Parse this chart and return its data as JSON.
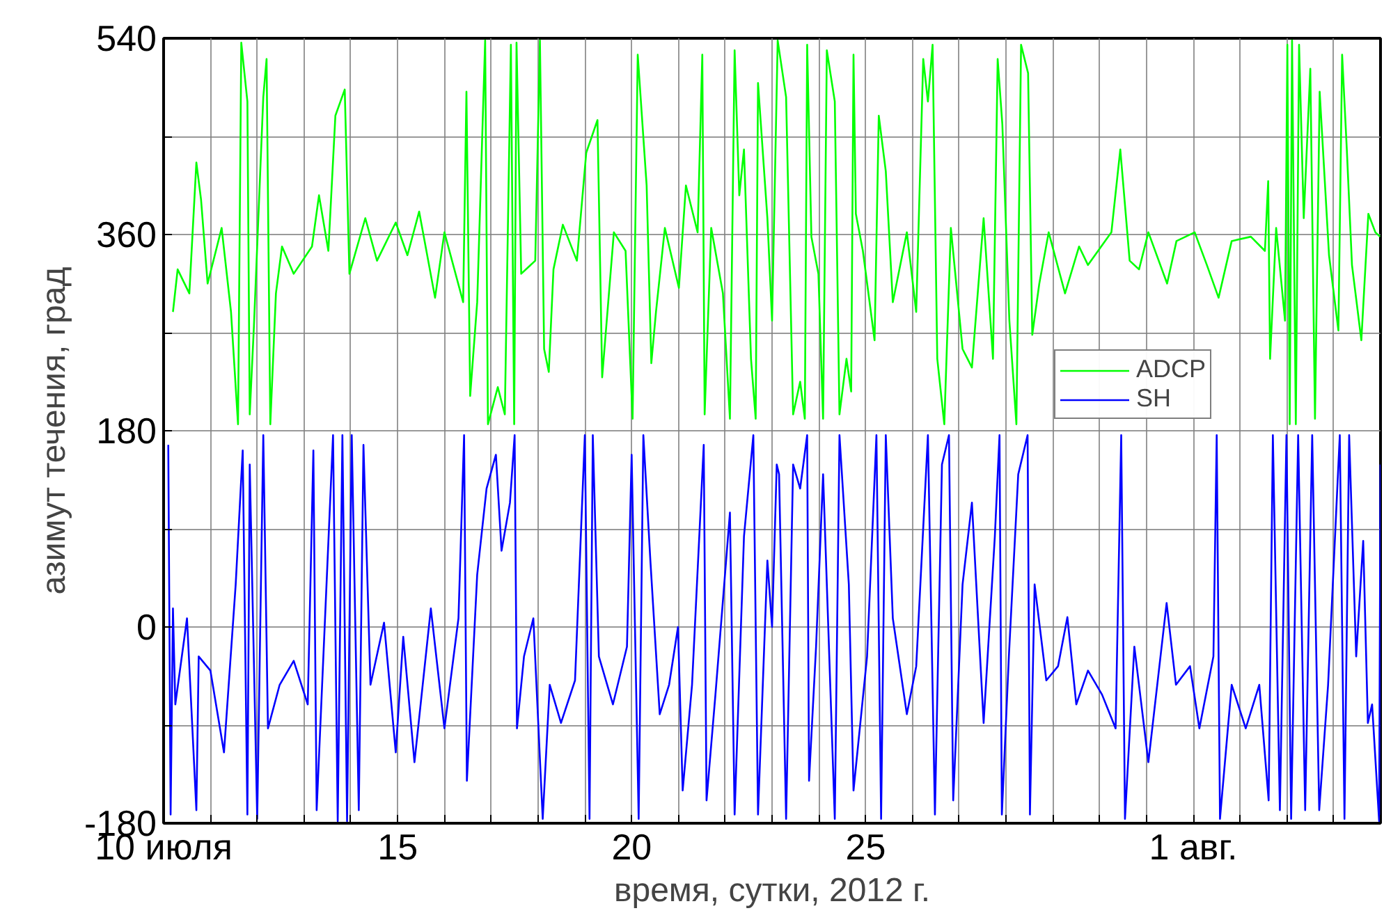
{
  "chart_data": {
    "type": "line",
    "xlabel": "время, сутки, 2012 г.",
    "ylabel": "азимут течения, град",
    "xlim": [
      "2012-07-10",
      "2012-08-05"
    ],
    "ylim": [
      -180,
      540
    ],
    "xticks": [
      {
        "value": "2012-07-10",
        "label": "10 июля"
      },
      {
        "value": "2012-07-11",
        "label": null
      },
      {
        "value": "2012-07-12",
        "label": null
      },
      {
        "value": "2012-07-13",
        "label": null
      },
      {
        "value": "2012-07-14",
        "label": null
      },
      {
        "value": "2012-07-15",
        "label": "15"
      },
      {
        "value": "2012-07-16",
        "label": null
      },
      {
        "value": "2012-07-17",
        "label": null
      },
      {
        "value": "2012-07-18",
        "label": null
      },
      {
        "value": "2012-07-19",
        "label": null
      },
      {
        "value": "2012-07-20",
        "label": "20"
      },
      {
        "value": "2012-07-21",
        "label": null
      },
      {
        "value": "2012-07-22",
        "label": null
      },
      {
        "value": "2012-07-23",
        "label": null
      },
      {
        "value": "2012-07-24",
        "label": null
      },
      {
        "value": "2012-07-25",
        "label": "25"
      },
      {
        "value": "2012-07-26",
        "label": null
      },
      {
        "value": "2012-07-27",
        "label": null
      },
      {
        "value": "2012-07-28",
        "label": null
      },
      {
        "value": "2012-07-29",
        "label": null
      },
      {
        "value": "2012-07-30",
        "label": null
      },
      {
        "value": "2012-07-31",
        "label": null
      },
      {
        "value": "2012-08-01",
        "label": "1 авг."
      },
      {
        "value": "2012-08-02",
        "label": null
      },
      {
        "value": "2012-08-03",
        "label": null
      },
      {
        "value": "2012-08-04",
        "label": null
      },
      {
        "value": "2012-08-05",
        "label": null
      }
    ],
    "yticks": [
      -180,
      {
        "value": -90,
        "label": null
      },
      0,
      {
        "value": 90,
        "label": null
      },
      180,
      {
        "value": 270,
        "label": null
      },
      360,
      {
        "value": 450,
        "label": null
      },
      540
    ],
    "grid": true,
    "legend": "right",
    "series": [
      {
        "name": "ADCP",
        "color": "#00ff00",
        "x": [
          "2012-07-10T04:48",
          "2012-07-10T07:12",
          "2012-07-10T13:12",
          "2012-07-10T16:48",
          "2012-07-10T19:12",
          "2012-07-10T22:34",
          "2012-07-11T05:46",
          "2012-07-11T10:34",
          "2012-07-11T14:10",
          "2012-07-11T15:50",
          "2012-07-11T18:58",
          "2012-07-11T20:10",
          "2012-07-11T22:19",
          "2012-07-12T03:07",
          "2012-07-12T04:48",
          "2012-07-12T06:43",
          "2012-07-12T09:36",
          "2012-07-12T12:43",
          "2012-07-12T18:43",
          "2012-07-13T04:05",
          "2012-07-13T07:41",
          "2012-07-13T12:29",
          "2012-07-13T16:05",
          "2012-07-13T20:53",
          "2012-07-13T23:17",
          "2012-07-14T07:26",
          "2012-07-14T13:26",
          "2012-07-14T23:02",
          "2012-07-15T05:02",
          "2012-07-15T11:02",
          "2012-07-15T19:12",
          "2012-07-16T00:00",
          "2012-07-16T09:36",
          "2012-07-16T11:17",
          "2012-07-16T13:12",
          "2012-07-16T16:48",
          "2012-07-16T20:53",
          "2012-07-16T22:19",
          "2012-07-17T03:22",
          "2012-07-17T06:58",
          "2012-07-17T10:05",
          "2012-07-17T11:46",
          "2012-07-17T12:58",
          "2012-07-17T15:22",
          "2012-07-17T22:34",
          "2012-07-18T00:58",
          "2012-07-18T03:07",
          "2012-07-18T05:31",
          "2012-07-18T07:55",
          "2012-07-18T12:43",
          "2012-07-18T19:55",
          "2012-07-19T00:43",
          "2012-07-19T06:29",
          "2012-07-19T08:53",
          "2012-07-19T14:53",
          "2012-07-19T20:53",
          "2012-07-20T00:29",
          "2012-07-20T03:07",
          "2012-07-20T07:41",
          "2012-07-20T10:05",
          "2012-07-20T12:29",
          "2012-07-20T17:02",
          "2012-07-21T00:14",
          "2012-07-21T03:50",
          "2012-07-21T09:50",
          "2012-07-21T12:14",
          "2012-07-21T13:26",
          "2012-07-21T16:48",
          "2012-07-21T22:48",
          "2012-07-22T02:24",
          "2012-07-22T04:48",
          "2012-07-22T07:12",
          "2012-07-22T09:36",
          "2012-07-22T13:12",
          "2012-07-22T15:36",
          "2012-07-22T16:48",
          "2012-07-22T21:36",
          "2012-07-23T00:00",
          "2012-07-23T02:53",
          "2012-07-23T07:12",
          "2012-07-23T10:48",
          "2012-07-23T14:24",
          "2012-07-23T16:48",
          "2012-07-23T18:00",
          "2012-07-23T20:10",
          "2012-07-23T23:46",
          "2012-07-24T02:10",
          "2012-07-24T04:05",
          "2012-07-24T08:10",
          "2012-07-24T10:34",
          "2012-07-24T14:10",
          "2012-07-24T16:34",
          "2012-07-24T17:46",
          "2012-07-24T18:58",
          "2012-07-24T22:34",
          "2012-07-25T04:34",
          "2012-07-25T06:43",
          "2012-07-25T10:19",
          "2012-07-25T13:55",
          "2012-07-25T21:07",
          "2012-07-26T01:55",
          "2012-07-26T05:31",
          "2012-07-26T07:55",
          "2012-07-26T10:19",
          "2012-07-26T12:43",
          "2012-07-26T16:19",
          "2012-07-26T19:41",
          "2012-07-27T01:41",
          "2012-07-27T06:29",
          "2012-07-27T12:29",
          "2012-07-27T17:17",
          "2012-07-27T19:41",
          "2012-07-27T22:05",
          "2012-07-28T01:41",
          "2012-07-28T05:17",
          "2012-07-28T07:41",
          "2012-07-28T11:17",
          "2012-07-28T13:26",
          "2012-07-28T17:02",
          "2012-07-28T21:50",
          "2012-07-29T06:14",
          "2012-07-29T13:26",
          "2012-07-29T18:00",
          "2012-07-30T06:00",
          "2012-07-30T10:34",
          "2012-07-30T15:22",
          "2012-07-30T20:10",
          "2012-07-31T00:58",
          "2012-07-31T10:34",
          "2012-07-31T15:22",
          "2012-08-01T00:43",
          "2012-08-01T06:58",
          "2012-08-01T12:58",
          "2012-08-01T19:41",
          "2012-08-02T05:31",
          "2012-08-02T12:43",
          "2012-08-02T14:24",
          "2012-08-02T15:22",
          "2012-08-02T18:29",
          "2012-08-02T23:02",
          "2012-08-03T00:14",
          "2012-08-03T01:26",
          "2012-08-03T02:38",
          "2012-08-03T04:34",
          "2012-08-03T06:14",
          "2012-08-03T08:38",
          "2012-08-03T12:00",
          "2012-08-03T14:24",
          "2012-08-03T16:48",
          "2012-08-03T21:36",
          "2012-08-04T02:24",
          "2012-08-04T04:19",
          "2012-08-04T06:43",
          "2012-08-04T09:22",
          "2012-08-04T14:10",
          "2012-08-04T17:46",
          "2012-08-04T21:22",
          "2012-08-04T23:46"
        ],
        "values": [
          289,
          328,
          306,
          426,
          392,
          315,
          366,
          289,
          186,
          536,
          482,
          195,
          276,
          486,
          521,
          186,
          306,
          349,
          324,
          349,
          396,
          345,
          469,
          493,
          324,
          375,
          336,
          371,
          341,
          381,
          302,
          362,
          298,
          491,
          212,
          298,
          538,
          186,
          220,
          195,
          534,
          186,
          536,
          324,
          336,
          538,
          255,
          234,
          328,
          369,
          336,
          435,
          465,
          229,
          362,
          345,
          191,
          525,
          405,
          242,
          289,
          366,
          311,
          405,
          362,
          525,
          195,
          366,
          306,
          191,
          529,
          396,
          438,
          246,
          191,
          499,
          375,
          281,
          538,
          486,
          195,
          225,
          191,
          534,
          358,
          324,
          191,
          529,
          482,
          195,
          246,
          216,
          525,
          379,
          345,
          263,
          469,
          418,
          298,
          362,
          289,
          521,
          482,
          534,
          246,
          186,
          366,
          255,
          238,
          375,
          246,
          521,
          461,
          281,
          186,
          534,
          508,
          268,
          315,
          362,
          306,
          349,
          332,
          362,
          438,
          336,
          328,
          362,
          315,
          354,
          362,
          332,
          302,
          354,
          358,
          345,
          409,
          246,
          366,
          281,
          534,
          186,
          538,
          186,
          534,
          375,
          512,
          191,
          491,
          341,
          272,
          525,
          438,
          332,
          263,
          379,
          362,
          358
        ]
      },
      {
        "name": "SH",
        "color": "#0000ff",
        "x": [
          "2012-07-10T02:24",
          "2012-07-10T03:36",
          "2012-07-10T04:48",
          "2012-07-10T06:00",
          "2012-07-10T12:00",
          "2012-07-10T16:48",
          "2012-07-10T18:00",
          "2012-07-11T00:00",
          "2012-07-11T06:58",
          "2012-07-11T12:58",
          "2012-07-11T16:34",
          "2012-07-11T18:58",
          "2012-07-11T20:10",
          "2012-07-12T00:00",
          "2012-07-12T03:07",
          "2012-07-12T05:31",
          "2012-07-12T11:31",
          "2012-07-12T18:43",
          "2012-07-13T01:55",
          "2012-07-13T04:48",
          "2012-07-13T06:29",
          "2012-07-13T14:53",
          "2012-07-13T17:17",
          "2012-07-13T19:41",
          "2012-07-13T22:05",
          "2012-07-14T00:29",
          "2012-07-14T04:05",
          "2012-07-14T06:29",
          "2012-07-14T10:05",
          "2012-07-14T17:02",
          "2012-07-14T23:02",
          "2012-07-15T02:53",
          "2012-07-15T08:38",
          "2012-07-15T17:02",
          "2012-07-16T00:00",
          "2012-07-16T07:12",
          "2012-07-16T10:05",
          "2012-07-16T11:31",
          "2012-07-16T16:48",
          "2012-07-16T21:36",
          "2012-07-17T02:24",
          "2012-07-17T05:17",
          "2012-07-17T09:36",
          "2012-07-17T12:00",
          "2012-07-17T13:12",
          "2012-07-17T16:48",
          "2012-07-17T21:36",
          "2012-07-18T02:24",
          "2012-07-18T06:00",
          "2012-07-18T11:46",
          "2012-07-18T18:58",
          "2012-07-19T00:00",
          "2012-07-19T02:24",
          "2012-07-19T04:05",
          "2012-07-19T07:12",
          "2012-07-19T14:24",
          "2012-07-19T21:36",
          "2012-07-20T00:00",
          "2012-07-20T03:36",
          "2012-07-20T06:00",
          "2012-07-20T09:36",
          "2012-07-20T14:24",
          "2012-07-20T19:12",
          "2012-07-20T23:46",
          "2012-07-21T02:10",
          "2012-07-21T06:58",
          "2012-07-21T12:58",
          "2012-07-21T14:24",
          "2012-07-21T18:58",
          "2012-07-22T02:24",
          "2012-07-22T04:48",
          "2012-07-22T09:36",
          "2012-07-22T14:24",
          "2012-07-22T16:48",
          "2012-07-22T21:36",
          "2012-07-23T00:00",
          "2012-07-23T02:24",
          "2012-07-23T03:36",
          "2012-07-23T07:12",
          "2012-07-23T10:48",
          "2012-07-23T14:24",
          "2012-07-23T18:00",
          "2012-07-23T18:58",
          "2012-07-23T22:34",
          "2012-07-24T02:10",
          "2012-07-24T08:10",
          "2012-07-24T10:34",
          "2012-07-24T15:22",
          "2012-07-24T17:46",
          "2012-07-25T00:43",
          "2012-07-25T05:31",
          "2012-07-25T07:55",
          "2012-07-25T10:19",
          "2012-07-25T13:55",
          "2012-07-25T21:07",
          "2012-07-26T01:55",
          "2012-07-26T07:55",
          "2012-07-26T11:31",
          "2012-07-26T15:07",
          "2012-07-26T18:43",
          "2012-07-26T20:53",
          "2012-07-27T01:41",
          "2012-07-27T06:29",
          "2012-07-27T12:29",
          "2012-07-27T18:14",
          "2012-07-27T20:38",
          "2012-07-27T21:50",
          "2012-07-28T01:26",
          "2012-07-28T06:14",
          "2012-07-28T11:02",
          "2012-07-28T12:14",
          "2012-07-28T14:38",
          "2012-07-28T20:38",
          "2012-07-29T02:38",
          "2012-07-29T07:26",
          "2012-07-29T12:00",
          "2012-07-29T18:00",
          "2012-07-30T01:12",
          "2012-07-30T08:10",
          "2012-07-30T11:02",
          "2012-07-30T12:58",
          "2012-07-30T17:46",
          "2012-07-31T00:58",
          "2012-07-31T05:31",
          "2012-07-31T10:19",
          "2012-07-31T15:07",
          "2012-07-31T22:19",
          "2012-08-01T03:07",
          "2012-08-01T10:19",
          "2012-08-01T12:00",
          "2012-08-01T13:41",
          "2012-08-01T19:41",
          "2012-08-02T02:53",
          "2012-08-02T09:50",
          "2012-08-02T14:38",
          "2012-08-02T16:48",
          "2012-08-02T20:24",
          "2012-08-02T23:46",
          "2012-08-03T02:10",
          "2012-08-03T05:46",
          "2012-08-03T09:22",
          "2012-08-03T12:58",
          "2012-08-03T16:34",
          "2012-08-03T21:07",
          "2012-08-04T03:07",
          "2012-08-04T05:31",
          "2012-08-04T07:55",
          "2012-08-04T11:31",
          "2012-08-04T15:07",
          "2012-08-04T17:31",
          "2012-08-04T19:41",
          "2012-08-04T23:17",
          "2012-08-05T00:00"
        ],
        "values": [
          167,
          -172,
          17,
          -71,
          8,
          -168,
          -27,
          -40,
          -115,
          39,
          162,
          -172,
          149,
          -176,
          176,
          -93,
          -53,
          -31,
          -71,
          162,
          -168,
          176,
          -178,
          176,
          -178,
          176,
          -168,
          167,
          -53,
          4,
          -115,
          -9,
          -124,
          17,
          -93,
          8,
          176,
          -141,
          48,
          127,
          158,
          70,
          114,
          176,
          -93,
          -27,
          8,
          -176,
          -53,
          -88,
          -49,
          176,
          -176,
          176,
          -27,
          -71,
          -18,
          158,
          -176,
          176,
          61,
          -80,
          -53,
          0,
          -150,
          -53,
          167,
          -159,
          -62,
          105,
          -172,
          83,
          176,
          -172,
          61,
          0,
          149,
          140,
          -176,
          149,
          127,
          176,
          -141,
          -18,
          140,
          -176,
          176,
          39,
          -150,
          -27,
          176,
          -176,
          176,
          8,
          -80,
          -36,
          176,
          -172,
          149,
          176,
          -159,
          39,
          114,
          -88,
          83,
          176,
          -172,
          -27,
          140,
          176,
          -172,
          39,
          -49,
          -36,
          9,
          -71,
          -40,
          -62,
          -93,
          176,
          -176,
          -18,
          -124,
          -53,
          22,
          -53,
          -36,
          -93,
          -27,
          176,
          -176,
          -53,
          -93,
          -53,
          -159,
          176,
          -168,
          176,
          -176,
          176,
          -168,
          176,
          -168,
          -53,
          176,
          -176,
          176,
          -27,
          79,
          -88,
          -71,
          -178,
          149
        ]
      }
    ]
  }
}
